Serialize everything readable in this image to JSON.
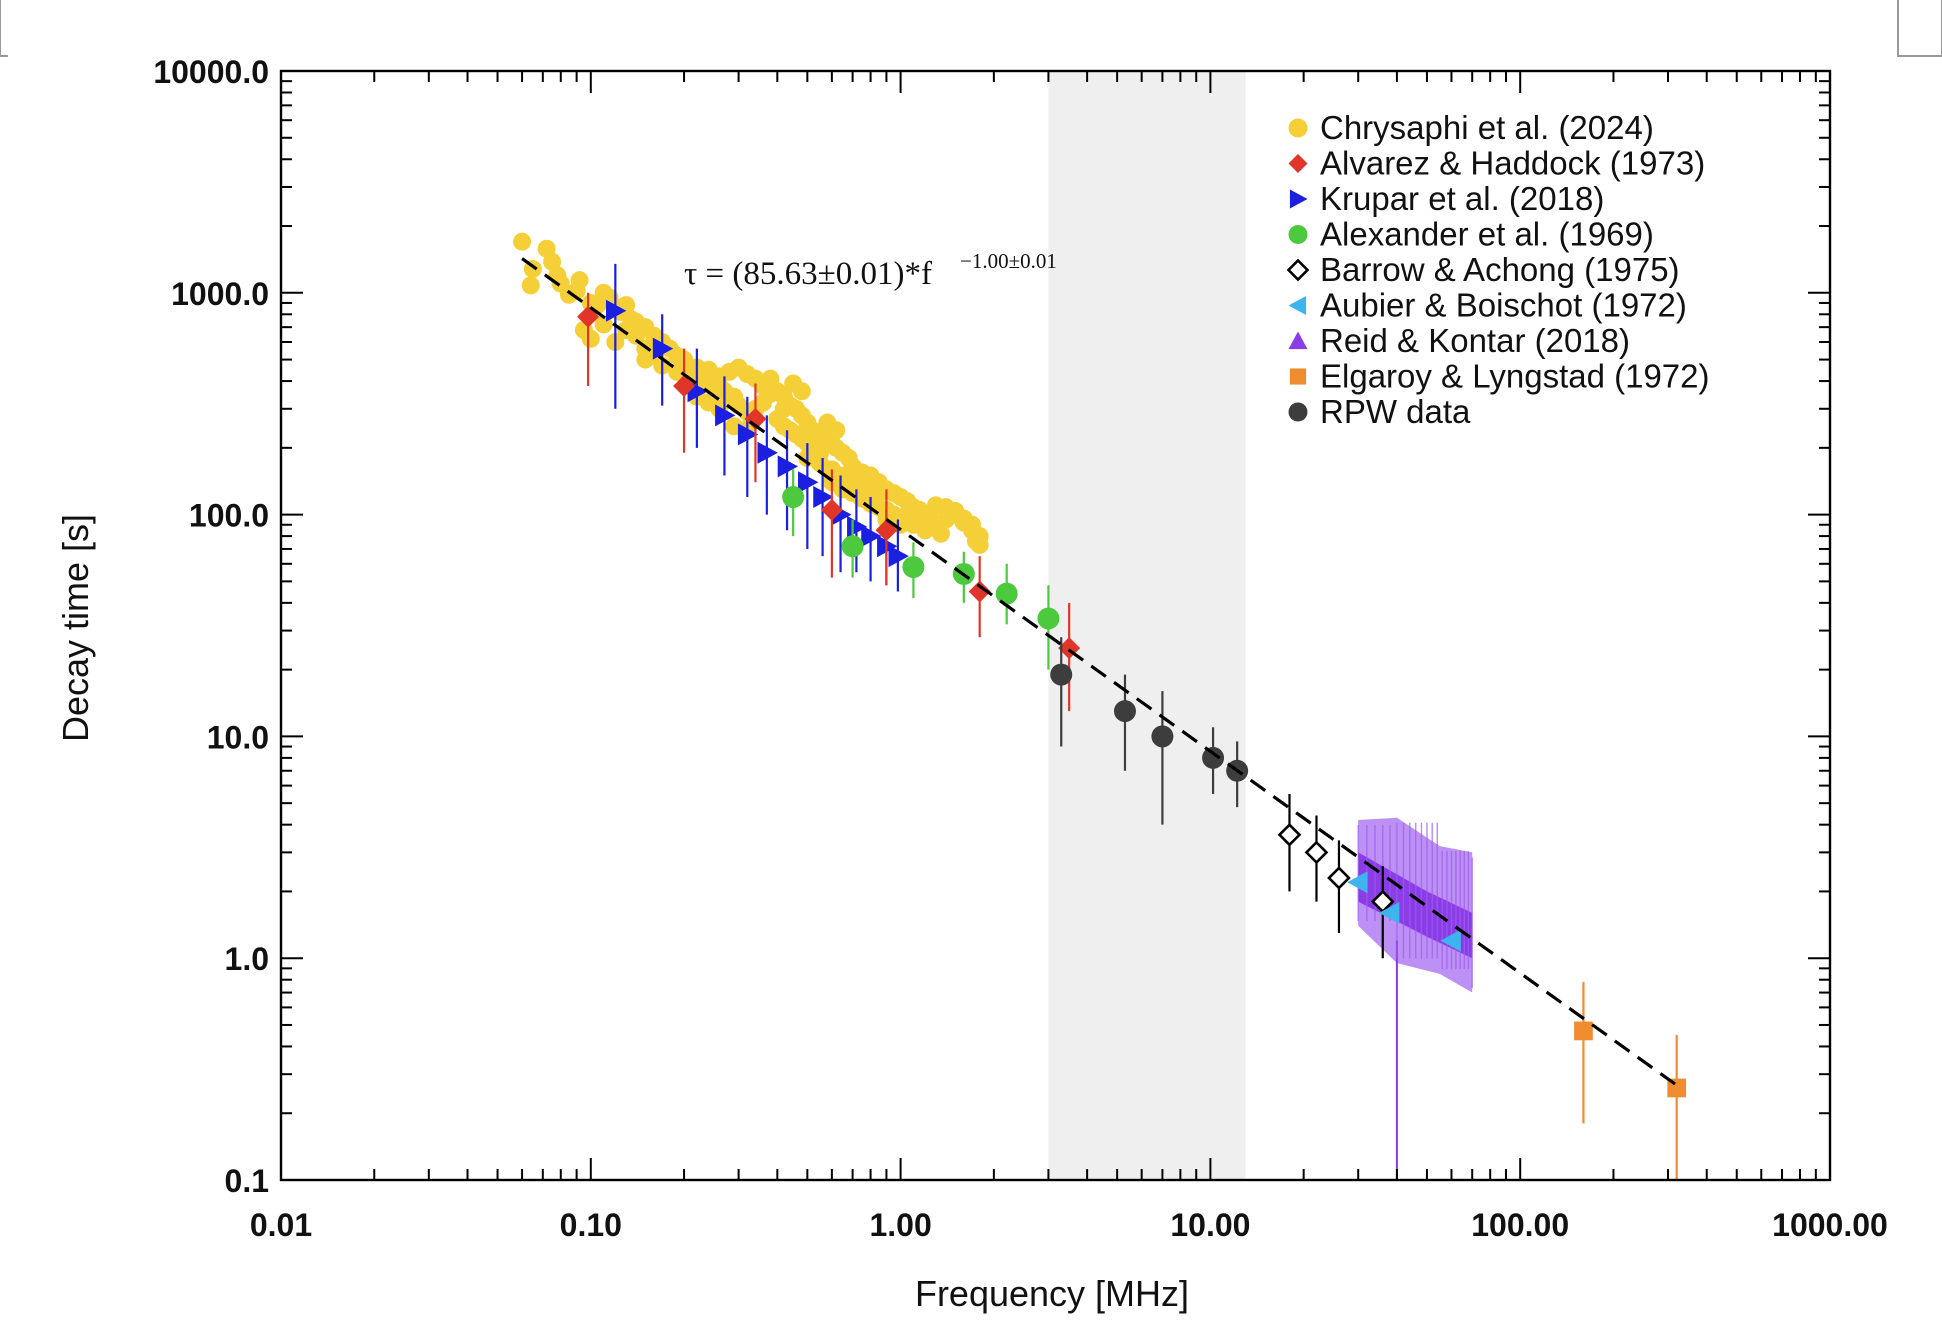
{
  "chart_data": {
    "type": "scatter",
    "xlabel": "Frequency [MHz]",
    "ylabel": "Decay time [s]",
    "x_scale": "log",
    "y_scale": "log",
    "xlim": [
      0.01,
      1000
    ],
    "ylim": [
      0.1,
      10000
    ],
    "x_tick_labels": [
      "0.01",
      "0.10",
      "1.00",
      "10.00",
      "100.00",
      "1000.00"
    ],
    "y_tick_labels": [
      "0.1",
      "1.0",
      "10.0",
      "100.0",
      "1000.0",
      "10000.0"
    ],
    "grid": false,
    "legend_position": "top-right",
    "shaded_band": {
      "x_from": 3.0,
      "x_to": 13.0,
      "color": "#efefef"
    },
    "fit": {
      "label": "τ = (85.63±0.01)*f",
      "exponent_label": "−1.00±0.01",
      "coefficient": 85.63,
      "exponent": -1.0,
      "x_range": [
        0.06,
        330
      ],
      "style": "dashed",
      "color": "#000000"
    },
    "series": [
      {
        "name": "Chrysaphi et al. (2024)",
        "marker": "circle",
        "color": "#f5cf38",
        "cloud": [
          [
            0.06,
            1700
          ],
          [
            0.064,
            1080
          ],
          [
            0.072,
            1580
          ],
          [
            0.078,
            1200
          ],
          [
            0.085,
            980
          ],
          [
            0.092,
            1140
          ],
          [
            0.1,
            900
          ],
          [
            0.11,
            1000
          ],
          [
            0.12,
            860
          ],
          [
            0.065,
            1280
          ],
          [
            0.075,
            1380
          ],
          [
            0.08,
            1100
          ],
          [
            0.09,
            1020
          ],
          [
            0.105,
            880
          ],
          [
            0.115,
            950
          ],
          [
            0.125,
            820
          ],
          [
            0.135,
            760
          ],
          [
            0.095,
            680
          ],
          [
            0.1,
            620
          ],
          [
            0.11,
            720
          ],
          [
            0.12,
            600
          ],
          [
            0.13,
            680
          ],
          [
            0.14,
            640
          ],
          [
            0.15,
            560
          ],
          [
            0.16,
            520
          ],
          [
            0.13,
            880
          ],
          [
            0.14,
            740
          ],
          [
            0.15,
            700
          ],
          [
            0.16,
            640
          ],
          [
            0.17,
            600
          ],
          [
            0.18,
            560
          ],
          [
            0.19,
            520
          ],
          [
            0.2,
            480
          ],
          [
            0.15,
            500
          ],
          [
            0.17,
            470
          ],
          [
            0.19,
            440
          ],
          [
            0.21,
            420
          ],
          [
            0.23,
            400
          ],
          [
            0.25,
            380
          ],
          [
            0.27,
            360
          ],
          [
            0.29,
            340
          ],
          [
            0.2,
            500
          ],
          [
            0.22,
            460
          ],
          [
            0.24,
            450
          ],
          [
            0.26,
            420
          ],
          [
            0.28,
            440
          ],
          [
            0.3,
            460
          ],
          [
            0.32,
            430
          ],
          [
            0.34,
            410
          ],
          [
            0.22,
            340
          ],
          [
            0.24,
            320
          ],
          [
            0.26,
            300
          ],
          [
            0.28,
            330
          ],
          [
            0.3,
            310
          ],
          [
            0.32,
            290
          ],
          [
            0.34,
            300
          ],
          [
            0.36,
            320
          ],
          [
            0.36,
            380
          ],
          [
            0.38,
            350
          ],
          [
            0.4,
            360
          ],
          [
            0.42,
            340
          ],
          [
            0.44,
            310
          ],
          [
            0.46,
            300
          ],
          [
            0.48,
            280
          ],
          [
            0.38,
            410
          ],
          [
            0.4,
            270
          ],
          [
            0.42,
            250
          ],
          [
            0.44,
            240
          ],
          [
            0.46,
            230
          ],
          [
            0.48,
            220
          ],
          [
            0.5,
            210
          ],
          [
            0.52,
            200
          ],
          [
            0.55,
            190
          ],
          [
            0.5,
            260
          ],
          [
            0.52,
            240
          ],
          [
            0.55,
            230
          ],
          [
            0.58,
            220
          ],
          [
            0.6,
            210
          ],
          [
            0.62,
            200
          ],
          [
            0.65,
            190
          ],
          [
            0.68,
            180
          ],
          [
            0.5,
            180
          ],
          [
            0.55,
            170
          ],
          [
            0.6,
            160
          ],
          [
            0.65,
            150
          ],
          [
            0.7,
            145
          ],
          [
            0.75,
            140
          ],
          [
            0.8,
            130
          ],
          [
            0.85,
            125
          ],
          [
            0.6,
            140
          ],
          [
            0.65,
            130
          ],
          [
            0.7,
            125
          ],
          [
            0.75,
            118
          ],
          [
            0.8,
            112
          ],
          [
            0.85,
            108
          ],
          [
            0.9,
            105
          ],
          [
            0.95,
            100
          ],
          [
            0.7,
            165
          ],
          [
            0.75,
            155
          ],
          [
            0.8,
            150
          ],
          [
            0.85,
            140
          ],
          [
            0.9,
            130
          ],
          [
            0.95,
            125
          ],
          [
            1.0,
            120
          ],
          [
            1.05,
            115
          ],
          [
            0.9,
            95
          ],
          [
            0.95,
            92
          ],
          [
            1.0,
            90
          ],
          [
            1.05,
            100
          ],
          [
            1.1,
            108
          ],
          [
            1.15,
            105
          ],
          [
            1.2,
            100
          ],
          [
            1.25,
            95
          ],
          [
            1.1,
            90
          ],
          [
            1.2,
            85
          ],
          [
            1.3,
            88
          ],
          [
            1.4,
            95
          ],
          [
            1.5,
            100
          ],
          [
            1.6,
            92
          ],
          [
            1.7,
            85
          ],
          [
            1.8,
            80
          ],
          [
            1.3,
            110
          ],
          [
            1.4,
            108
          ],
          [
            1.5,
            104
          ],
          [
            1.6,
            96
          ],
          [
            1.7,
            90
          ],
          [
            1.75,
            76
          ],
          [
            1.8,
            73
          ],
          [
            1.35,
            82
          ],
          [
            0.45,
            390
          ],
          [
            0.48,
            360
          ],
          [
            0.42,
            300
          ],
          [
            0.33,
            260
          ],
          [
            0.29,
            250
          ],
          [
            0.26,
            380
          ],
          [
            0.58,
            260
          ],
          [
            0.62,
            240
          ]
        ]
      },
      {
        "name": "Alvarez & Haddock (1973)",
        "marker": "diamond",
        "color": "#e0362a",
        "points": [
          {
            "x": 0.098,
            "y": 780,
            "lo": 380,
            "hi": 1000
          },
          {
            "x": 0.2,
            "y": 380,
            "lo": 190,
            "hi": 560
          },
          {
            "x": 0.34,
            "y": 270,
            "lo": 140,
            "hi": 390
          },
          {
            "x": 0.6,
            "y": 105,
            "lo": 52,
            "hi": 160
          },
          {
            "x": 0.9,
            "y": 85,
            "lo": 48,
            "hi": 130
          },
          {
            "x": 1.8,
            "y": 45,
            "lo": 28,
            "hi": 65
          },
          {
            "x": 3.5,
            "y": 25,
            "lo": 13,
            "hi": 40
          }
        ]
      },
      {
        "name": "Krupar et al. (2018)",
        "marker": "triangle-right",
        "color": "#1a1fe0",
        "points": [
          {
            "x": 0.12,
            "y": 830,
            "lo": 300,
            "hi": 1350
          },
          {
            "x": 0.17,
            "y": 560,
            "lo": 310,
            "hi": 800
          },
          {
            "x": 0.22,
            "y": 360,
            "lo": 200,
            "hi": 560
          },
          {
            "x": 0.27,
            "y": 280,
            "lo": 150,
            "hi": 420
          },
          {
            "x": 0.32,
            "y": 230,
            "lo": 120,
            "hi": 340
          },
          {
            "x": 0.37,
            "y": 190,
            "lo": 100,
            "hi": 280
          },
          {
            "x": 0.43,
            "y": 165,
            "lo": 85,
            "hi": 240
          },
          {
            "x": 0.5,
            "y": 140,
            "lo": 70,
            "hi": 210
          },
          {
            "x": 0.56,
            "y": 120,
            "lo": 65,
            "hi": 180
          },
          {
            "x": 0.64,
            "y": 100,
            "lo": 55,
            "hi": 150
          },
          {
            "x": 0.72,
            "y": 88,
            "lo": 55,
            "hi": 130
          },
          {
            "x": 0.8,
            "y": 80,
            "lo": 50,
            "hi": 120
          },
          {
            "x": 0.9,
            "y": 72,
            "lo": 48,
            "hi": 105
          },
          {
            "x": 0.98,
            "y": 65,
            "lo": 45,
            "hi": 95
          }
        ]
      },
      {
        "name": "Alexander et al. (1969)",
        "marker": "circle",
        "color": "#4cc93c",
        "points": [
          {
            "x": 0.45,
            "y": 120,
            "lo": 80,
            "hi": 160
          },
          {
            "x": 0.7,
            "y": 72,
            "lo": 52,
            "hi": 95
          },
          {
            "x": 1.1,
            "y": 58,
            "lo": 42,
            "hi": 75
          },
          {
            "x": 1.6,
            "y": 54,
            "lo": 40,
            "hi": 68
          },
          {
            "x": 2.2,
            "y": 44,
            "lo": 32,
            "hi": 60
          },
          {
            "x": 3.0,
            "y": 34,
            "lo": 20,
            "hi": 48
          }
        ]
      },
      {
        "name": "Barrow & Achong (1975)",
        "marker": "diamond-open",
        "color": "#000000",
        "points": [
          {
            "x": 18.0,
            "y": 3.6,
            "lo": 2.0,
            "hi": 5.5
          },
          {
            "x": 22.0,
            "y": 3.0,
            "lo": 1.8,
            "hi": 4.4
          },
          {
            "x": 26.0,
            "y": 2.3,
            "lo": 1.3,
            "hi": 3.4
          },
          {
            "x": 36.0,
            "y": 1.8,
            "lo": 1.0,
            "hi": 2.6
          }
        ]
      },
      {
        "name": "Aubier & Boischot (1972)",
        "marker": "triangle-left",
        "color": "#3db4ee",
        "points": [
          {
            "x": 30.0,
            "y": 2.2
          },
          {
            "x": 38.0,
            "y": 1.6
          },
          {
            "x": 60.0,
            "y": 1.2
          }
        ]
      },
      {
        "name": "Reid & Kontar (2018)",
        "marker": "triangle-up",
        "color": "#8a3ce6",
        "band": [
          {
            "x": 30,
            "lo": 1.4,
            "hi": 4.2
          },
          {
            "x": 40,
            "lo": 0.95,
            "hi": 4.3
          },
          {
            "x": 55,
            "lo": 0.85,
            "hi": 3.2
          },
          {
            "x": 70,
            "lo": 0.7,
            "hi": 3.0
          }
        ],
        "core": [
          {
            "x": 30,
            "lo": 1.8,
            "hi": 3.0
          },
          {
            "x": 50,
            "lo": 1.25,
            "hi": 2.0
          },
          {
            "x": 70,
            "lo": 1.0,
            "hi": 1.6
          }
        ],
        "drop": {
          "x": 40,
          "lo": 0.1,
          "hi": 1.2
        }
      },
      {
        "name": "Elgaroy & Lyngstad (1972)",
        "marker": "square",
        "color": "#f08c30",
        "points": [
          {
            "x": 160.0,
            "y": 0.47,
            "lo": 0.18,
            "hi": 0.78
          },
          {
            "x": 320.0,
            "y": 0.26,
            "lo": 0.1,
            "hi": 0.45
          }
        ]
      },
      {
        "name": "RPW data",
        "marker": "circle",
        "color": "#3d3d3d",
        "points": [
          {
            "x": 3.3,
            "y": 19,
            "lo": 9,
            "hi": 28
          },
          {
            "x": 5.3,
            "y": 13,
            "lo": 7,
            "hi": 19
          },
          {
            "x": 7.0,
            "y": 10,
            "lo": 4,
            "hi": 16
          },
          {
            "x": 10.2,
            "y": 8,
            "lo": 5.5,
            "hi": 11
          },
          {
            "x": 12.2,
            "y": 7,
            "lo": 4.8,
            "hi": 9.5
          }
        ]
      }
    ]
  }
}
